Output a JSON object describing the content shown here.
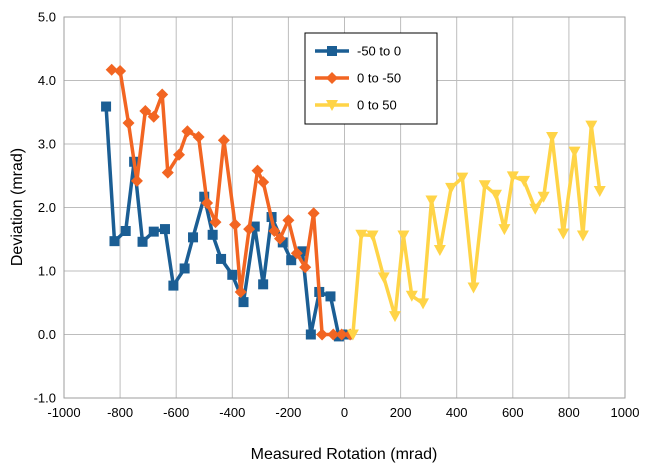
{
  "chart_data": {
    "type": "line",
    "xlabel": "Measured Rotation (mrad)",
    "ylabel": "Deviation (mrad)",
    "xlim": [
      -1000,
      1000
    ],
    "ylim": [
      -1.0,
      5.0
    ],
    "x_ticks": [
      -1000,
      -800,
      -600,
      -400,
      -200,
      0,
      200,
      400,
      600,
      800,
      1000
    ],
    "y_ticks": [
      -1.0,
      0.0,
      1.0,
      2.0,
      3.0,
      4.0,
      5.0
    ],
    "y_tick_labels": [
      "-1.0",
      "0.0",
      "1.0",
      "2.0",
      "3.0",
      "4.0",
      "5.0"
    ],
    "grid": "vertical and horizontal",
    "legend_position": "top-center",
    "series": [
      {
        "name": "-50 to 0",
        "color": "#1b5e94",
        "marker": "square",
        "x": [
          -850,
          -820,
          -780,
          -750,
          -720,
          -680,
          -640,
          -610,
          -570,
          -540,
          -500,
          -470,
          -440,
          -400,
          -360,
          -320,
          -290,
          -260,
          -220,
          -190,
          -150,
          -120,
          -90,
          -50,
          -20,
          10
        ],
        "y": [
          3.59,
          1.47,
          1.63,
          2.72,
          1.46,
          1.62,
          1.66,
          0.77,
          1.04,
          1.53,
          2.17,
          1.57,
          1.19,
          0.94,
          0.51,
          1.7,
          0.79,
          1.85,
          1.45,
          1.17,
          1.31,
          0.0,
          0.67,
          0.6,
          -0.03,
          0.0
        ]
      },
      {
        "name": "0 to -50",
        "color": "#f26522",
        "marker": "diamond",
        "x": [
          -830,
          -800,
          -770,
          -740,
          -710,
          -680,
          -650,
          -630,
          -590,
          -560,
          -520,
          -490,
          -460,
          -430,
          -390,
          -370,
          -340,
          -310,
          -290,
          -250,
          -230,
          -200,
          -170,
          -140,
          -110,
          -80,
          -40,
          -10,
          20
        ],
        "y": [
          4.17,
          4.15,
          3.33,
          2.42,
          3.52,
          3.43,
          3.78,
          2.55,
          2.83,
          3.2,
          3.11,
          2.07,
          1.77,
          3.06,
          1.73,
          0.67,
          1.66,
          2.58,
          2.4,
          1.63,
          1.51,
          1.8,
          1.28,
          1.06,
          1.91,
          0.0,
          0.0,
          0.0,
          0.0
        ]
      },
      {
        "name": "0 to 50",
        "color": "#ffd447",
        "marker": "triangle-down",
        "x": [
          30,
          60,
          100,
          140,
          180,
          210,
          240,
          280,
          310,
          340,
          380,
          420,
          460,
          500,
          540,
          570,
          600,
          640,
          680,
          710,
          740,
          780,
          820,
          850,
          880,
          910
        ],
        "y": [
          0.0,
          1.57,
          1.56,
          0.9,
          0.29,
          1.56,
          0.61,
          0.49,
          2.11,
          1.33,
          2.31,
          2.47,
          0.74,
          2.35,
          2.2,
          1.66,
          2.49,
          2.42,
          1.98,
          2.17,
          3.11,
          1.59,
          2.88,
          1.56,
          3.29,
          2.26
        ]
      }
    ]
  }
}
